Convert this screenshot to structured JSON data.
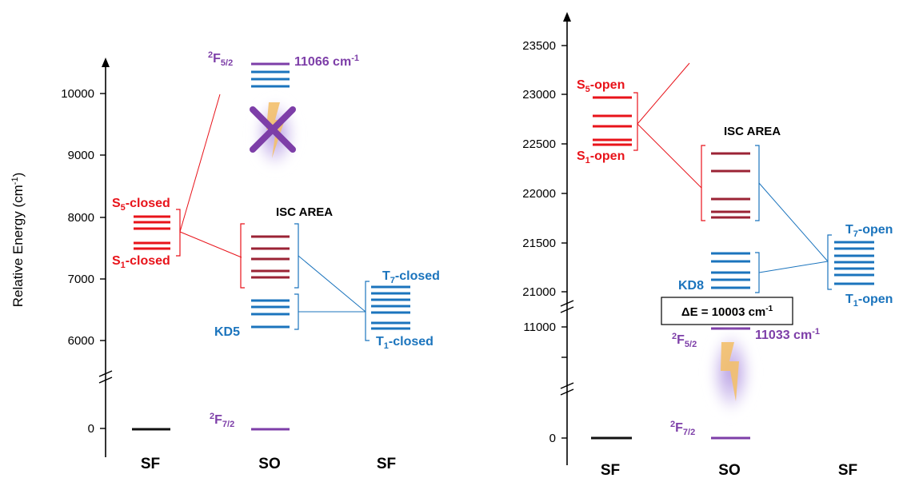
{
  "colors": {
    "red": "#e8131a",
    "blue": "#1b74bd",
    "purple": "#7d3ea8",
    "maroon": "#9b2335",
    "black": "#111111",
    "glow": "#9a78d6",
    "bolt": "#f3c06b"
  },
  "left_panel": {
    "y_axis_label": "Relative Energy (cm",
    "y_axis_label_sup": "-1",
    "y_axis_label_end": ")",
    "ticks": [
      "0",
      "6000",
      "7000",
      "8000",
      "9000",
      "10000"
    ],
    "x_categories": [
      "SF",
      "SO",
      "SF"
    ],
    "s_top": {
      "main": "S",
      "sub": "5",
      "tail": "-closed"
    },
    "s_bottom": {
      "main": "S",
      "sub": "1",
      "tail": "-closed"
    },
    "isc_label": "ISC AREA",
    "kd_label": "KD5",
    "t_top": {
      "main": "T",
      "sub": "7",
      "tail": "-closed"
    },
    "t_bottom": {
      "main": "T",
      "sub": "1",
      "tail": "-closed"
    },
    "f52": {
      "sup": "2",
      "main": "F",
      "sub": "5/2"
    },
    "f72": {
      "sup": "2",
      "main": "F",
      "sub": "7/2"
    },
    "f52_energy": "11066 cm",
    "f52_energy_sup": "-1"
  },
  "right_panel": {
    "ticks": [
      "0",
      "11000",
      "21000",
      "21500",
      "22000",
      "22500",
      "23000",
      "23500"
    ],
    "x_categories": [
      "SF",
      "SO",
      "SF"
    ],
    "s_top": {
      "main": "S",
      "sub": "5",
      "tail": "-open"
    },
    "s_bottom": {
      "main": "S",
      "sub": "1",
      "tail": "-open"
    },
    "isc_label": "ISC AREA",
    "kd_label": "KD8",
    "t_top": {
      "main": "T",
      "sub": "7",
      "tail": "-open"
    },
    "t_bottom": {
      "main": "T",
      "sub": "1",
      "tail": "-open"
    },
    "f52": {
      "sup": "2",
      "main": "F",
      "sub": "5/2"
    },
    "f72": {
      "sup": "2",
      "main": "F",
      "sub": "7/2"
    },
    "f52_energy": "11033 cm",
    "f52_energy_sup": "-1",
    "delta_box": "ΔE = 10003 cm",
    "delta_box_sup": "-1"
  }
}
